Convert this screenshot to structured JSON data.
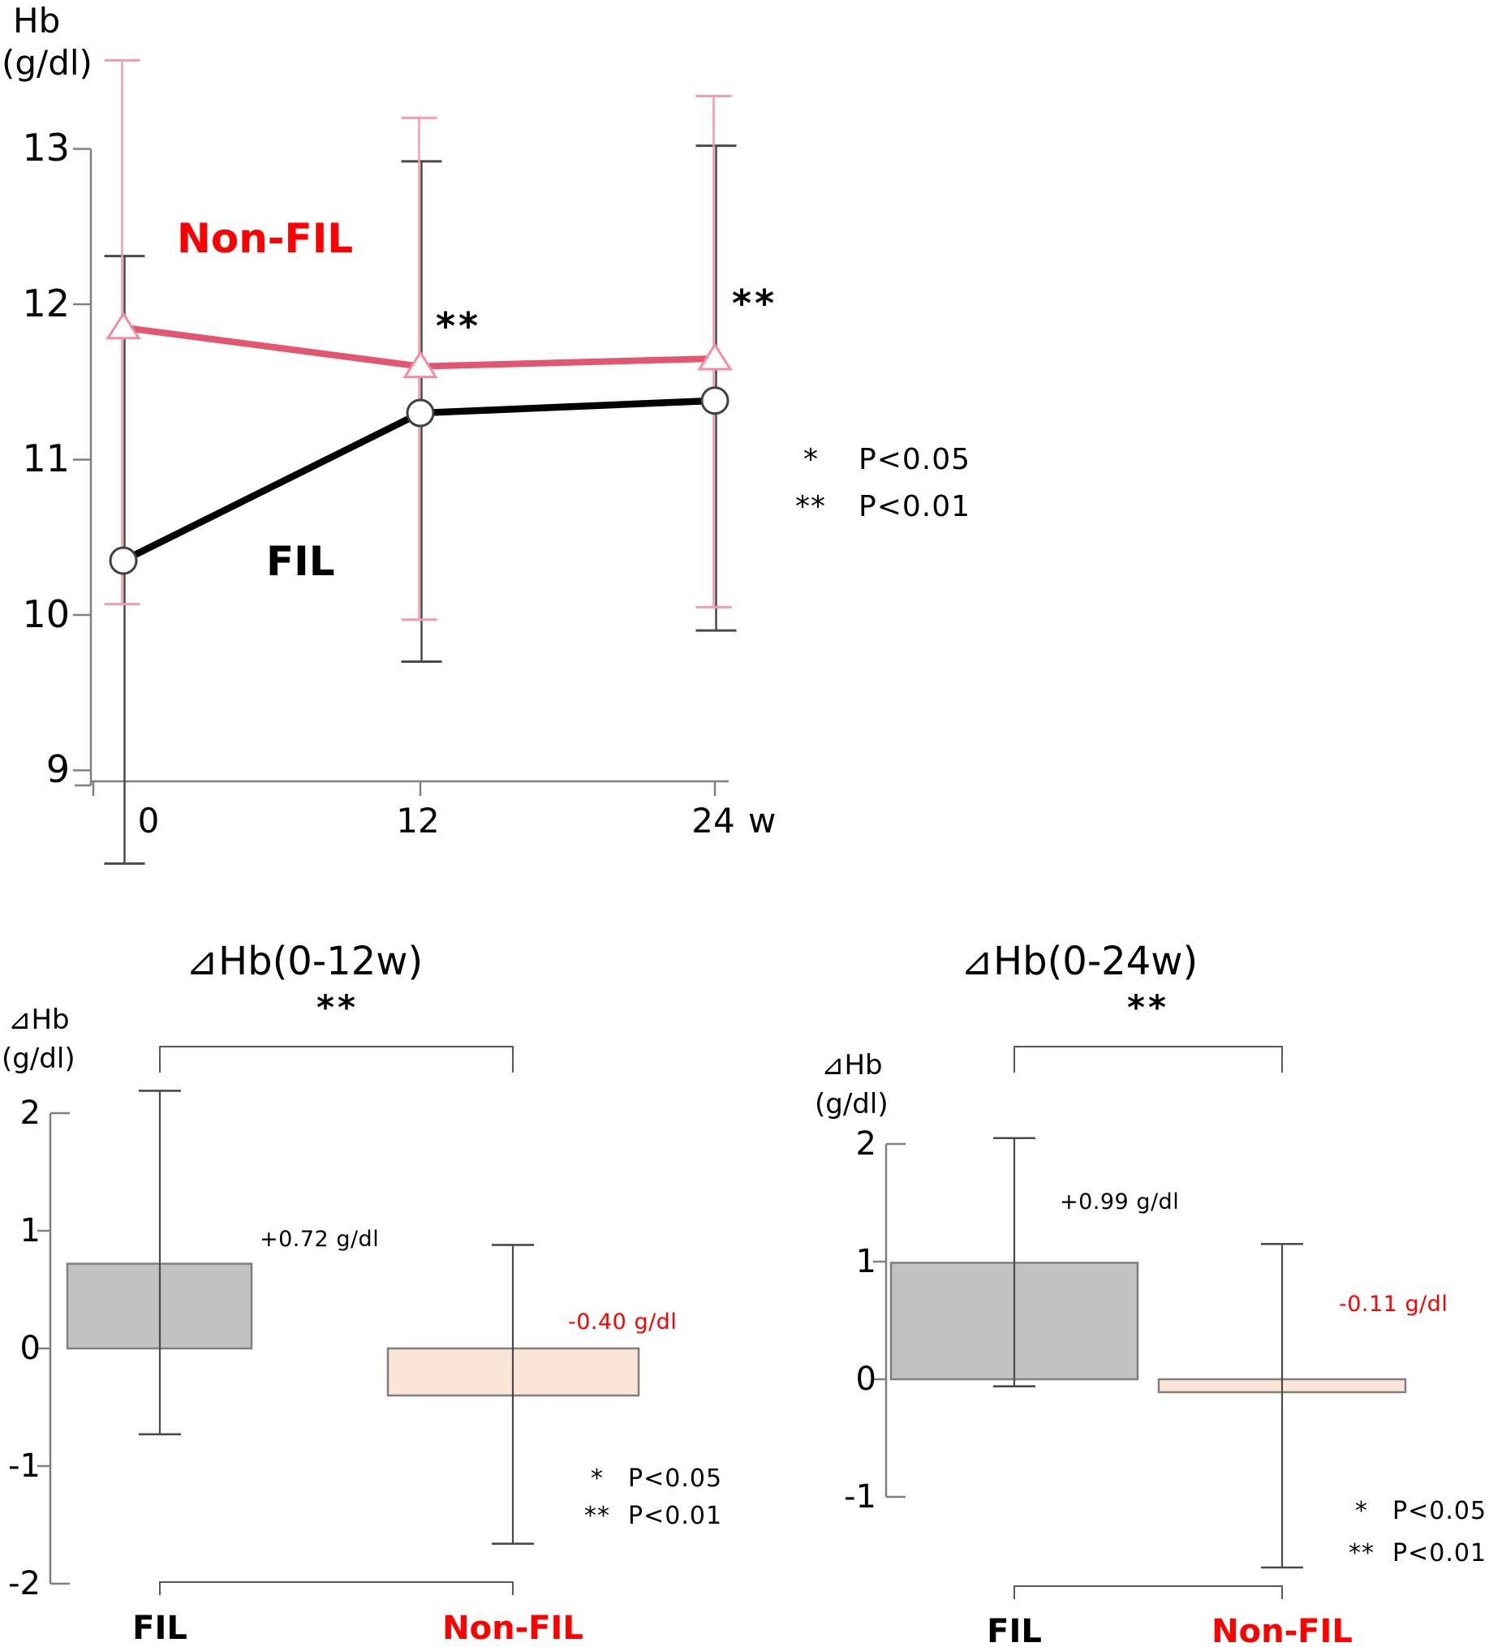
{
  "figure": {
    "background": "#ffffff"
  },
  "top_chart": {
    "type": "line",
    "y_axis_label": [
      "Hb",
      "(g/dl)"
    ],
    "ylabel": "Hb (g/dl)",
    "xlabel": "w",
    "x_unit_label": "w",
    "x_weeks": [
      0,
      12,
      24
    ],
    "x_tick_labels": [
      "0",
      "12",
      "24"
    ],
    "y_ticks": [
      "13",
      "12",
      "11",
      "10",
      "9"
    ],
    "ylim": [
      9,
      13
    ],
    "grid": false,
    "series": [
      {
        "name": "FIL",
        "label": "FIL",
        "color": "#000000",
        "label_color": "#000000",
        "marker": "open-circle",
        "values": [
          10.35,
          11.3,
          11.38
        ],
        "err_low": [
          8.4,
          9.7,
          9.9
        ],
        "err_high": [
          12.31,
          12.92,
          13.02
        ]
      },
      {
        "name": "Non-FIL",
        "label": "Non-FIL",
        "color": "#E25670",
        "label_color": "#FF0000",
        "marker": "open-triangle",
        "values": [
          11.85,
          11.6,
          11.65
        ],
        "err_low": [
          10.07,
          9.97,
          10.05
        ],
        "err_high": [
          13.57,
          13.2,
          13.34
        ]
      }
    ],
    "annotations": [
      {
        "text": "**",
        "at_week": 12
      },
      {
        "text": "**",
        "at_week": 24
      }
    ],
    "legend": {
      "position": "right",
      "rows": [
        {
          "symbol": "*",
          "text": "P<0.05"
        },
        {
          "symbol": "**",
          "text": "P<0.01"
        }
      ]
    }
  },
  "bottom_left_chart": {
    "type": "bar",
    "title": "⊿Hb(0-12w)",
    "y_axis_label": [
      "⊿Hb",
      "(g/dl)"
    ],
    "ylabel": "⊿Hb (g/dl)",
    "y_ticks": [
      "2",
      "1",
      "0",
      "-1",
      "-2"
    ],
    "ylim": [
      -2,
      2
    ],
    "categories": [
      "FIL",
      "Non-FIL"
    ],
    "values": [
      0.72,
      -0.4
    ],
    "significance": "**",
    "bars": [
      {
        "category": "FIL",
        "category_color": "#000000",
        "value": 0.72,
        "value_label": "+0.72 g/dl",
        "value_label_color": "#000000",
        "err_low": -0.73,
        "err_high": 2.19,
        "fill": "#C2C2C2"
      },
      {
        "category": "Non-FIL",
        "category_color": "#FF0000",
        "value": -0.4,
        "value_label": "-0.40 g/dl",
        "value_label_color": "#FF0000",
        "err_low": -1.66,
        "err_high": 0.88,
        "fill": "#FBE5D6"
      }
    ],
    "legend": {
      "rows": [
        {
          "symbol": "*",
          "text": "P<0.05"
        },
        {
          "symbol": "**",
          "text": "P<0.01"
        }
      ]
    }
  },
  "bottom_right_chart": {
    "type": "bar",
    "title": "⊿Hb(0-24w)",
    "y_axis_label": [
      "⊿Hb",
      "(g/dl)"
    ],
    "ylabel": "⊿Hb (g/dl)",
    "y_ticks": [
      "2",
      "1",
      "0",
      "-1"
    ],
    "ylim": [
      -1,
      2
    ],
    "categories": [
      "FIL",
      "Non-FIL"
    ],
    "values": [
      0.99,
      -0.11
    ],
    "significance": "**",
    "bars": [
      {
        "category": "FIL",
        "category_color": "#000000",
        "value": 0.99,
        "value_label": "+0.99 g/dl",
        "value_label_color": "#000000",
        "err_low": -0.06,
        "err_high": 2.05,
        "fill": "#C2C2C2"
      },
      {
        "category": "Non-FIL",
        "category_color": "#FF0000",
        "value": -0.11,
        "value_label": "-0.11 g/dl",
        "value_label_color": "#FF0000",
        "err_low": -1.6,
        "err_high": 1.15,
        "fill": "#FBE5D6"
      }
    ],
    "legend": {
      "rows": [
        {
          "symbol": "*",
          "text": "P<0.05"
        },
        {
          "symbol": "**",
          "text": "P<0.01"
        }
      ]
    }
  }
}
